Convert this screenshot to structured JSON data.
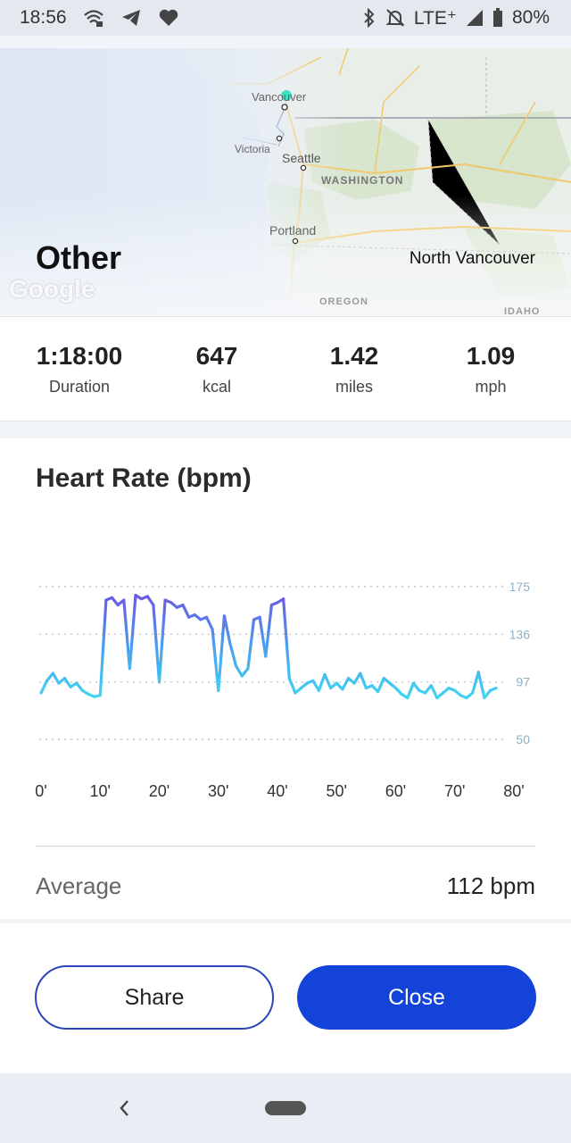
{
  "status_bar": {
    "time": "18:56",
    "network": "LTE⁺",
    "battery": "80%",
    "icons": [
      "wifi-call-icon",
      "telegram-icon",
      "heart-icon",
      "bluetooth-icon",
      "mute-icon",
      "signal-icon",
      "battery-icon"
    ]
  },
  "map": {
    "activity_title": "Other",
    "place": "North Vancouver",
    "watermark": "Google",
    "labels": {
      "vancouver": "Vancouver",
      "victoria": "Victoria",
      "seattle": "Seattle",
      "washington": "WASHINGTON",
      "portland": "Portland",
      "oregon": "OREGON",
      "idaho": "IDAHO"
    }
  },
  "stats": [
    {
      "value": "1:18:00",
      "label": "Duration"
    },
    {
      "value": "647",
      "label": "kcal"
    },
    {
      "value": "1.42",
      "label": "miles"
    },
    {
      "value": "1.09",
      "label": "mph"
    }
  ],
  "heart_rate": {
    "title": "Heart Rate (bpm)",
    "average_label": "Average",
    "average_value": "112 bpm"
  },
  "chart_data": {
    "type": "area",
    "title": "Heart Rate (bpm)",
    "x_unit": "minutes",
    "xlim": [
      0,
      80
    ],
    "ylim": [
      50,
      175
    ],
    "x_ticks": [
      "0'",
      "10'",
      "20'",
      "30'",
      "40'",
      "50'",
      "60'",
      "70'",
      "80'"
    ],
    "y_ticks": [
      "175",
      "136",
      "97",
      "50"
    ],
    "y_tick_values": [
      175,
      136,
      97,
      50
    ],
    "grid": "dotted horizontal",
    "colors": {
      "low": "#3ee8ef",
      "high": "#6a5ae0",
      "grid": "#b9cad6",
      "tick": "#8fb0c4"
    },
    "series": [
      {
        "x": [
          0,
          1,
          2,
          3,
          4,
          5,
          6,
          7,
          8,
          9,
          10,
          11,
          12,
          13,
          14,
          15,
          16,
          17,
          18,
          19,
          20,
          21,
          22,
          23,
          24,
          25,
          26,
          27,
          28,
          29,
          30,
          31,
          32,
          33,
          34,
          35,
          36,
          37,
          38,
          39,
          40,
          41,
          42,
          43,
          44,
          45,
          46,
          47,
          48,
          49,
          50,
          51,
          52,
          53,
          54,
          55,
          56,
          57,
          58,
          59,
          60,
          61,
          62,
          63,
          64,
          65,
          66,
          67,
          68,
          69,
          70,
          71,
          72,
          73,
          74,
          75,
          76,
          77
        ],
        "values": [
          88,
          98,
          104,
          96,
          100,
          93,
          96,
          90,
          87,
          85,
          86,
          164,
          166,
          160,
          164,
          108,
          168,
          165,
          167,
          160,
          97,
          164,
          162,
          158,
          160,
          150,
          152,
          148,
          150,
          140,
          90,
          151,
          128,
          110,
          102,
          108,
          148,
          150,
          118,
          160,
          162,
          165,
          100,
          88,
          92,
          96,
          98,
          90,
          103,
          92,
          96,
          91,
          100,
          96,
          104,
          92,
          94,
          89,
          100,
          96,
          92,
          87,
          84,
          96,
          90,
          88,
          94,
          84,
          88,
          92,
          90,
          86,
          84,
          88,
          105,
          84,
          90,
          92
        ]
      }
    ]
  },
  "actions": {
    "share": "Share",
    "close": "Close"
  },
  "nav": {
    "back_icon": "chevron-left-icon",
    "home_icon": "home-pill-icon"
  }
}
